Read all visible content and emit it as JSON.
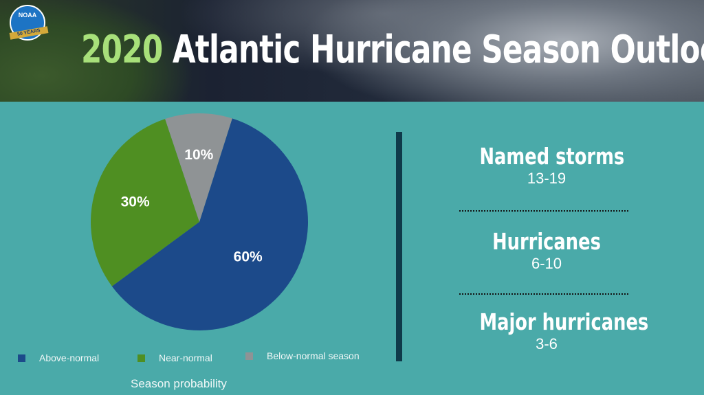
{
  "header": {
    "logo_text": "NOAA",
    "logo_badge": "50 YEARS",
    "title_year": "2020",
    "title_rest": "Atlantic Hurricane Season Outlook"
  },
  "chart_data": {
    "type": "pie",
    "title": "Season probability",
    "categories": [
      "Above-normal",
      "Near-normal",
      "Below-normal season"
    ],
    "values": [
      60,
      30,
      10
    ],
    "labels": [
      "60%",
      "30%",
      "10%"
    ],
    "colors": [
      "#1c4a8a",
      "#4f8f22",
      "#8f9395"
    ]
  },
  "stats": [
    {
      "label": "Named storms",
      "value": "13-19"
    },
    {
      "label": "Hurricanes",
      "value": "6-10"
    },
    {
      "label": "Major hurricanes",
      "value": "3-6"
    }
  ]
}
